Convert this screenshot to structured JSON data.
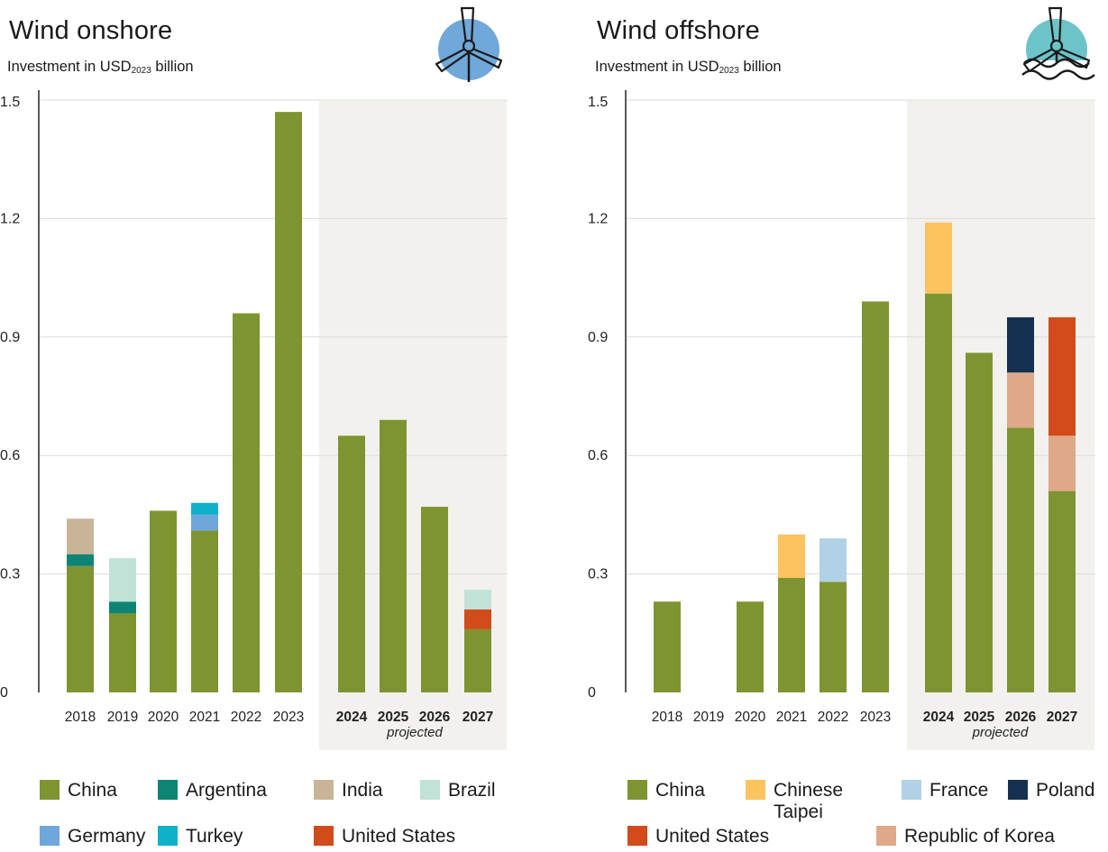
{
  "chart_data": [
    {
      "type": "bar",
      "stacked": true,
      "title": "Wind onshore",
      "subtitle_prefix": "Investment in USD",
      "subtitle_sub": "2023",
      "subtitle_suffix": " billion",
      "ylim": [
        0,
        1.5
      ],
      "yticks": [
        "0",
        "0.3",
        "0.6",
        "0.9",
        "1.2",
        "1.5"
      ],
      "ytick_values": [
        0,
        0.3,
        0.6,
        0.9,
        1.2,
        1.5
      ],
      "grid": true,
      "categories": [
        "2018",
        "2019",
        "2020",
        "2021",
        "2022",
        "2023",
        "2024",
        "2025",
        "2026",
        "2027"
      ],
      "projected_from": "2024",
      "projected_label": "projected",
      "series": [
        {
          "name": "China",
          "color": "#7e9431",
          "values": [
            0.32,
            0.2,
            0.46,
            0.41,
            0.96,
            1.47,
            0.65,
            0.69,
            0.47,
            0.16
          ]
        },
        {
          "name": "Argentina",
          "color": "#0e8474",
          "values": [
            0.03,
            0.03,
            0,
            0,
            0,
            0,
            0,
            0,
            0,
            0
          ]
        },
        {
          "name": "India",
          "color": "#c8b497",
          "values": [
            0.09,
            0,
            0,
            0,
            0,
            0,
            0,
            0,
            0,
            0
          ]
        },
        {
          "name": "Brazil",
          "color": "#c1e2d6",
          "values": [
            0,
            0.11,
            0,
            0,
            0,
            0,
            0,
            0,
            0,
            0.05
          ]
        },
        {
          "name": "Germany",
          "color": "#6fa7dc",
          "values": [
            0,
            0,
            0,
            0.04,
            0,
            0,
            0,
            0,
            0,
            0
          ]
        },
        {
          "name": "Turkey",
          "color": "#0fb0c9",
          "values": [
            0,
            0,
            0,
            0.03,
            0,
            0,
            0,
            0,
            0,
            0
          ]
        },
        {
          "name": "United States",
          "color": "#d24b1a",
          "values": [
            0,
            0,
            0,
            0,
            0,
            0,
            0,
            0,
            0,
            0.05
          ]
        }
      ],
      "stack_order": [
        "China",
        "Argentina",
        "India",
        "Germany",
        "Turkey",
        "United States",
        "Brazil"
      ],
      "legend": {
        "position": "bottom",
        "rows": [
          [
            "China",
            "Argentina",
            "India",
            "Brazil"
          ],
          [
            "Germany",
            "Turkey",
            "United States"
          ]
        ]
      },
      "icon": "wind-turbine-icon",
      "icon_color": "#6fa8d9"
    },
    {
      "type": "bar",
      "stacked": true,
      "title": "Wind offshore",
      "subtitle_prefix": "Investment in USD",
      "subtitle_sub": "2023",
      "subtitle_suffix": " billion",
      "ylim": [
        0,
        1.5
      ],
      "yticks": [
        "0",
        "0.3",
        "0.6",
        "0.9",
        "1.2",
        "1.5"
      ],
      "ytick_values": [
        0,
        0.3,
        0.6,
        0.9,
        1.2,
        1.5
      ],
      "grid": true,
      "categories": [
        "2018",
        "2019",
        "2020",
        "2021",
        "2022",
        "2023",
        "2024",
        "2025",
        "2026",
        "2027"
      ],
      "projected_from": "2024",
      "projected_label": "projected",
      "series": [
        {
          "name": "China",
          "color": "#7e9431",
          "values": [
            0.23,
            0,
            0.23,
            0.29,
            0.28,
            0.99,
            1.01,
            0.86,
            0.67,
            0.51
          ]
        },
        {
          "name": "Chinese Taipei",
          "color": "#fcc35f",
          "values": [
            0,
            0,
            0,
            0.11,
            0,
            0,
            0.18,
            0,
            0,
            0
          ]
        },
        {
          "name": "France",
          "color": "#b0d1e6",
          "values": [
            0,
            0,
            0,
            0,
            0.11,
            0,
            0,
            0,
            0,
            0
          ]
        },
        {
          "name": "Poland",
          "color": "#15314f",
          "values": [
            0,
            0,
            0,
            0,
            0,
            0,
            0,
            0,
            0.14,
            0
          ]
        },
        {
          "name": "United States",
          "color": "#d24b1a",
          "values": [
            0,
            0,
            0,
            0,
            0,
            0,
            0,
            0,
            0,
            0.3
          ]
        },
        {
          "name": "Republic of Korea",
          "color": "#dfa888",
          "values": [
            0,
            0,
            0,
            0,
            0,
            0,
            0,
            0,
            0.14,
            0.14
          ]
        }
      ],
      "stack_order": [
        "China",
        "Chinese Taipei",
        "France",
        "Republic of Korea",
        "Poland",
        "United States"
      ],
      "legend": {
        "position": "bottom",
        "rows": [
          [
            "China",
            "Chinese Taipei",
            "France",
            "Poland"
          ],
          [
            "United States",
            "Republic of Korea"
          ]
        ]
      },
      "icon": "wind-turbine-offshore-icon",
      "icon_color": "#6cc4c9"
    }
  ],
  "colors": {
    "projected_background": "#f2f1ed",
    "gridline": "#dcdcdc",
    "axis": "#222222"
  }
}
